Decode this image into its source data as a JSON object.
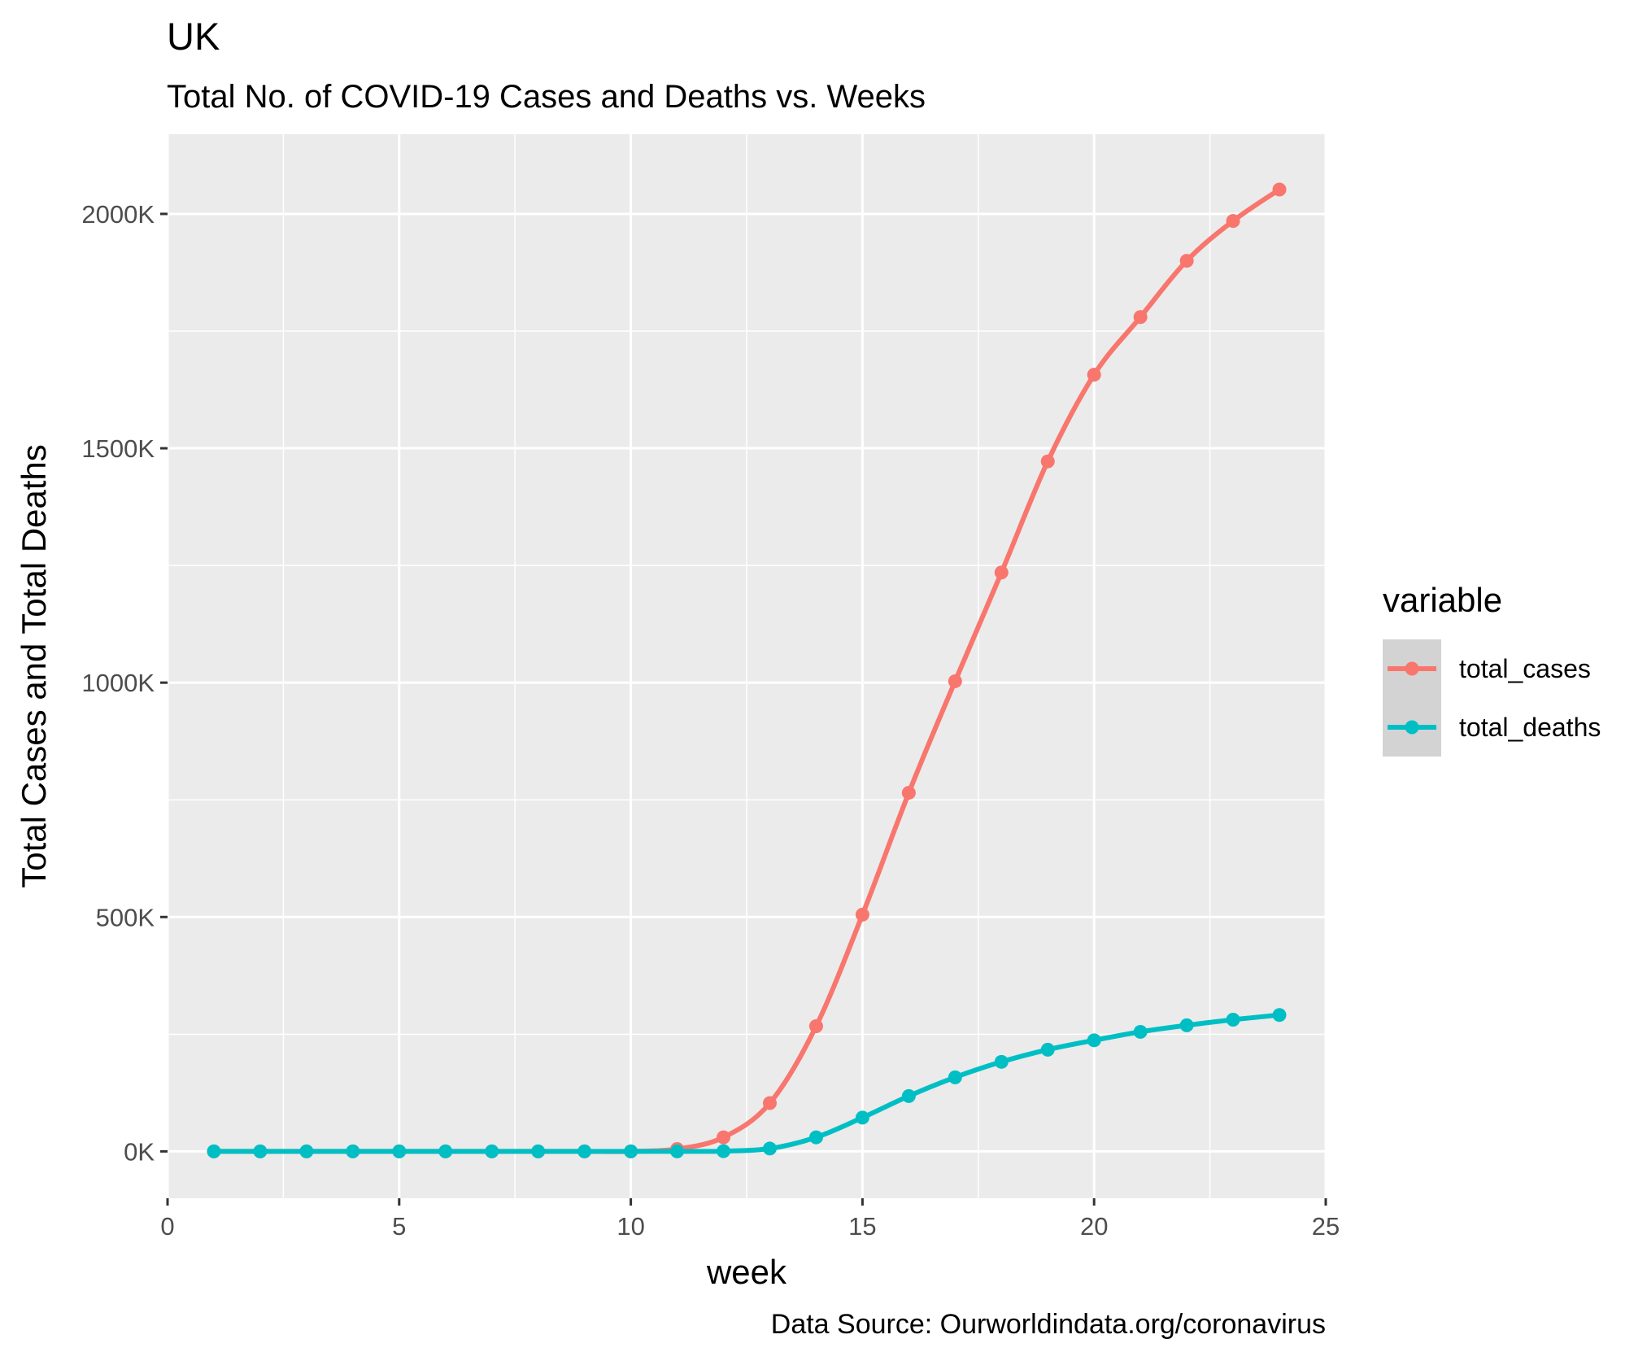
{
  "chart_data": {
    "type": "line",
    "title": "UK",
    "subtitle": "Total No. of COVID-19 Cases and Deaths vs. Weeks",
    "xlabel": "week",
    "ylabel": "Total Cases and Total Deaths",
    "caption": "Data Source: Ourworldindata.org/coronavirus",
    "xlim": [
      0,
      25
    ],
    "ylim": [
      -100000,
      2170000
    ],
    "x_ticks": [
      0,
      5,
      10,
      15,
      20,
      25
    ],
    "x_tick_labels": [
      "0",
      "5",
      "10",
      "15",
      "20",
      "25"
    ],
    "y_ticks": [
      0,
      500000,
      1000000,
      1500000,
      2000000
    ],
    "y_tick_labels": [
      "0K",
      "500K",
      "1000K",
      "1500K",
      "2000K"
    ],
    "grid": true,
    "legend": {
      "title": "variable",
      "position": "right"
    },
    "x": [
      1,
      2,
      3,
      4,
      5,
      6,
      7,
      8,
      9,
      10,
      11,
      12,
      13,
      14,
      15,
      16,
      17,
      18,
      19,
      20,
      21,
      22,
      23,
      24
    ],
    "series": [
      {
        "name": "total_cases",
        "color": "#F8766D",
        "values": [
          0,
          0,
          0,
          0,
          0,
          0,
          0,
          0,
          0,
          0,
          5000,
          30000,
          103000,
          267000,
          505000,
          765000,
          1003000,
          1235000,
          1472000,
          1657000,
          1780000,
          1900000,
          1985000,
          2052000
        ]
      },
      {
        "name": "total_deaths",
        "color": "#00BFC4",
        "values": [
          0,
          0,
          0,
          0,
          0,
          0,
          0,
          0,
          0,
          0,
          0,
          500,
          6000,
          30000,
          72000,
          118000,
          158000,
          191000,
          217000,
          237000,
          255000,
          269000,
          281000,
          291000
        ]
      }
    ]
  }
}
